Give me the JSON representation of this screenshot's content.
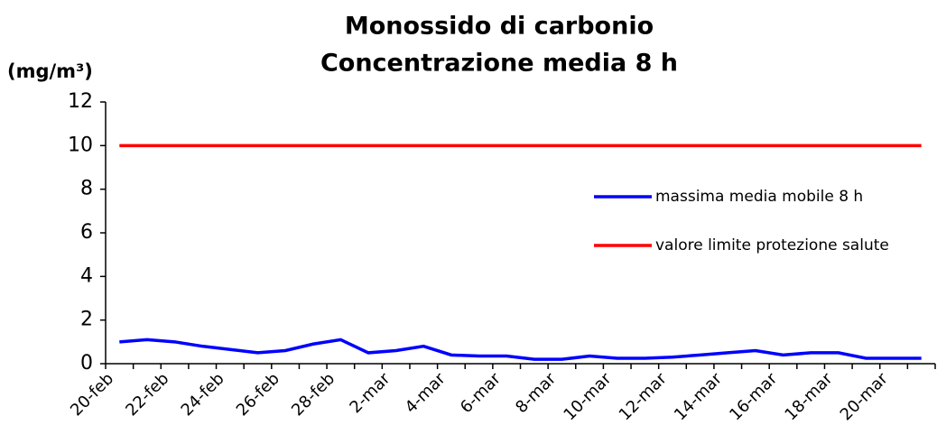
{
  "chart_data": {
    "type": "line",
    "title": [
      "Monossido di carbonio",
      "Concentrazione media 8 h"
    ],
    "y_axis_label": "(mg/m³)",
    "categories": [
      "20-feb",
      null,
      "22-feb",
      null,
      "24-feb",
      null,
      "26-feb",
      null,
      "28-feb",
      null,
      "2-mar",
      null,
      "4-mar",
      null,
      "6-mar",
      null,
      "8-mar",
      null,
      "10-mar",
      null,
      "12-mar",
      null,
      "14-mar",
      null,
      "16-mar",
      null,
      "18-mar",
      null,
      "20-mar",
      null
    ],
    "series": [
      {
        "name": "massima media mobile 8 h",
        "color": "#0000ff",
        "values": [
          1.0,
          1.1,
          1.0,
          0.8,
          0.65,
          0.5,
          0.6,
          0.9,
          1.1,
          0.5,
          0.6,
          0.8,
          0.4,
          0.35,
          0.35,
          0.2,
          0.2,
          0.35,
          0.25,
          0.25,
          0.3,
          0.4,
          0.5,
          0.6,
          0.4,
          0.5,
          0.5,
          0.25,
          0.25,
          0.25
        ]
      },
      {
        "name": "valore limite protezione salute",
        "color": "#ff0000",
        "values": [
          10,
          10,
          10,
          10,
          10,
          10,
          10,
          10,
          10,
          10,
          10,
          10,
          10,
          10,
          10,
          10,
          10,
          10,
          10,
          10,
          10,
          10,
          10,
          10,
          10,
          10,
          10,
          10,
          10,
          10
        ]
      }
    ],
    "ylim": [
      0,
      12
    ],
    "yticks": [
      0,
      2,
      4,
      6,
      8,
      10,
      12
    ]
  }
}
